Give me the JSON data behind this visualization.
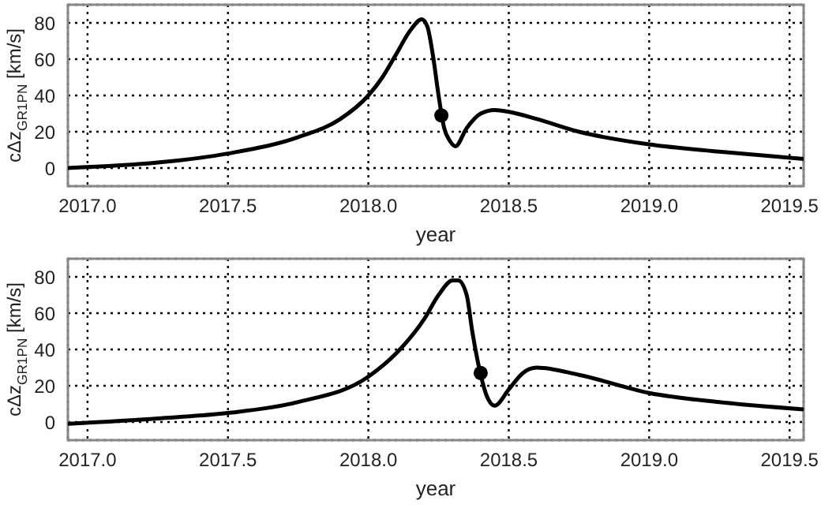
{
  "chart_data": [
    {
      "type": "line",
      "xlabel": "year",
      "ylabel": "cΔz$_{GR1PN}$ [km/s]",
      "xlim": [
        2016.93,
        2019.55
      ],
      "ylim": [
        -10,
        90
      ],
      "xticks": [
        {
          "value": 2017,
          "label": "2017.0"
        },
        2017.5,
        {
          "value": 2018,
          "label": "2018.0"
        },
        2018.5,
        {
          "value": 2019,
          "label": "2019.0"
        },
        2019.5
      ],
      "yticks": [
        0,
        20,
        40,
        60,
        80
      ],
      "grid": true,
      "series": [
        {
          "color": "#000000",
          "marker": "none",
          "line_style": "solid",
          "x": [
            2016.93,
            2017.25,
            2017.5,
            2017.75,
            2017.9,
            2018.0,
            2018.05,
            2018.1,
            2018.15,
            2018.19,
            2018.21,
            2018.23,
            2018.25,
            2018.27,
            2018.29,
            2018.31,
            2018.35,
            2018.4,
            2018.45,
            2018.5,
            2018.6,
            2018.75,
            2019.0,
            2019.25,
            2019.55
          ],
          "values": [
            0,
            3,
            8,
            17,
            27,
            40,
            50,
            63,
            76,
            82,
            78,
            62,
            40,
            22,
            15,
            12,
            22,
            30,
            32,
            31,
            27,
            20,
            13,
            9,
            5
          ]
        },
        {
          "type": "scatter",
          "color": "#000000",
          "marker": "circle",
          "x": [
            2018.26
          ],
          "values": [
            29
          ]
        }
      ]
    },
    {
      "type": "line",
      "xlabel": "year",
      "ylabel": "cΔz$_{GR1PN}$ [km/s]",
      "xlim": [
        2016.93,
        2019.55
      ],
      "ylim": [
        -10,
        90
      ],
      "xticks": [
        {
          "value": 2017,
          "label": "2017.0"
        },
        2017.5,
        {
          "value": 2018,
          "label": "2018.0"
        },
        2018.5,
        {
          "value": 2019,
          "label": "2019.0"
        },
        2019.5
      ],
      "yticks": [
        0,
        20,
        40,
        60,
        80
      ],
      "grid": true,
      "series": [
        {
          "color": "#000000",
          "marker": "none",
          "line_style": "solid",
          "x": [
            2016.93,
            2017.25,
            2017.5,
            2017.75,
            2018.0,
            2018.1,
            2018.2,
            2018.25,
            2018.3,
            2018.32,
            2018.35,
            2018.37,
            2018.4,
            2018.42,
            2018.45,
            2018.5,
            2018.55,
            2018.6,
            2018.75,
            2019.0,
            2019.25,
            2019.55
          ],
          "values": [
            -1,
            2,
            5,
            11,
            25,
            38,
            57,
            70,
            78,
            78,
            70,
            50,
            26,
            15,
            9,
            18,
            27,
            30,
            26,
            16,
            11,
            7
          ]
        },
        {
          "type": "scatter",
          "color": "#000000",
          "marker": "circle",
          "x": [
            2018.4
          ],
          "values": [
            27
          ]
        }
      ]
    }
  ]
}
